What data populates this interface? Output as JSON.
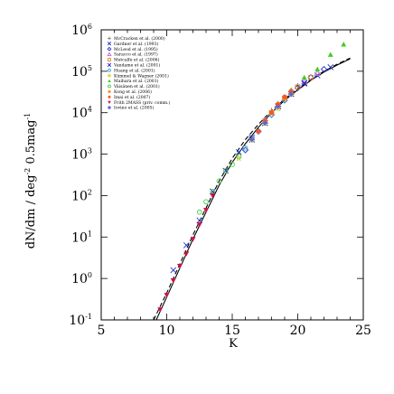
{
  "chart_data": {
    "type": "scatter",
    "title": "",
    "xlabel": "K",
    "ylabel_parts": {
      "a": "dN/dm / deg",
      "b": "-2",
      "c": " 0.5mag",
      "d": "-1"
    },
    "xlim": [
      5,
      25
    ],
    "ylim_log10": [
      -1,
      6
    ],
    "log_y": true,
    "grid": false,
    "legend_position": "upper-left",
    "x_ticks": [
      {
        "value": 5,
        "label": "5"
      },
      {
        "value": 10,
        "label": "10"
      },
      {
        "value": 15,
        "label": "15"
      },
      {
        "value": 20,
        "label": "20"
      },
      {
        "value": 25,
        "label": "25"
      }
    ],
    "y_ticks": [
      {
        "exp": 6,
        "base": "10",
        "sup": "6"
      },
      {
        "exp": 5,
        "base": "10",
        "sup": "5"
      },
      {
        "exp": 4,
        "base": "10",
        "sup": "4"
      },
      {
        "exp": 3,
        "base": "10",
        "sup": "3"
      },
      {
        "exp": 2,
        "base": "10",
        "sup": "2"
      },
      {
        "exp": 1,
        "base": "10",
        "sup": "1"
      },
      {
        "exp": 0,
        "base": "10",
        "sup": "0"
      },
      {
        "exp": -1,
        "base": "10",
        "sup": "-1"
      }
    ],
    "series": [
      {
        "name": "McCracken et al. (2000)",
        "marker": "plus",
        "color": "#7a7a7a",
        "x": [
          17.5,
          18.0,
          18.5,
          19.0,
          19.5,
          20.0
        ],
        "y_log10": [
          3.85,
          4.05,
          4.22,
          4.38,
          4.52,
          4.65
        ]
      },
      {
        "name": "Gardner et al. (1993)",
        "marker": "cross",
        "color": "#1a33cc",
        "x": [
          10.5,
          11.5,
          12.5,
          13.5,
          14.5,
          15.5,
          16.5,
          17.5,
          18.5,
          19.5,
          20.5,
          21.5,
          22.5
        ],
        "y_log10": [
          0.2,
          0.8,
          1.4,
          2.1,
          2.6,
          3.05,
          3.4,
          3.75,
          4.15,
          4.45,
          4.7,
          4.9,
          5.1
        ]
      },
      {
        "name": "McLeod et al. (1995)",
        "marker": "diamond-open",
        "color": "#2b2bcc",
        "x": [
          16.0,
          17.0,
          18.0,
          19.0,
          20.0,
          21.0,
          22.0
        ],
        "y_log10": [
          3.1,
          3.55,
          3.95,
          4.3,
          4.6,
          4.85,
          5.05
        ]
      },
      {
        "name": "Saracco et al. (1997)",
        "marker": "triangle-open",
        "color": "#cc66cc",
        "x": [
          17.5,
          18.5,
          19.5,
          20.5,
          21.5
        ],
        "y_log10": [
          3.8,
          4.2,
          4.5,
          4.75,
          4.95
        ]
      },
      {
        "name": "Metcalfe et al. (2006)",
        "marker": "square-open",
        "color": "#e08a2a",
        "x": [
          18.0,
          19.0,
          20.0,
          21.0
        ],
        "y_log10": [
          4.0,
          4.35,
          4.62,
          4.85
        ]
      },
      {
        "name": "Vandame et al. (2001)",
        "marker": "x-small",
        "color": "#1a1acc",
        "x": [
          16.5,
          17.5,
          18.5,
          19.5,
          20.5
        ],
        "y_log10": [
          3.35,
          3.75,
          4.15,
          4.45,
          4.72
        ]
      },
      {
        "name": "Huang et al. (2001)",
        "marker": "circle-open",
        "color": "#33aacc",
        "x": [
          16.0,
          17.0,
          18.0,
          19.0
        ],
        "y_log10": [
          3.15,
          3.55,
          3.95,
          4.3
        ]
      },
      {
        "name": "Kümmel & Wagner (2001)",
        "marker": "star-open",
        "color": "#c8c820",
        "x": [
          15.5,
          16.5,
          17.5,
          18.5,
          19.5
        ],
        "y_log10": [
          2.9,
          3.35,
          3.75,
          4.1,
          4.45
        ]
      },
      {
        "name": "Maihara et al. (2001)",
        "marker": "triangle-filled",
        "color": "#44cc22",
        "x": [
          19.5,
          20.5,
          21.5,
          22.5,
          23.5
        ],
        "y_log10": [
          4.55,
          4.85,
          5.05,
          5.4,
          5.65
        ]
      },
      {
        "name": "Väisänen et al. (2001)",
        "marker": "circle-open",
        "color": "#44cc44",
        "x": [
          12.5,
          13.0,
          13.5,
          14.0,
          14.5,
          15.0,
          15.5
        ],
        "y_log10": [
          1.6,
          1.85,
          2.1,
          2.35,
          2.6,
          2.75,
          2.95
        ]
      },
      {
        "name": "Kong et al. (2006)",
        "marker": "square-filled",
        "color": "#f09420",
        "x": [
          17.5,
          18.0,
          18.5,
          19.0
        ],
        "y_log10": [
          3.8,
          4.0,
          4.2,
          4.35
        ]
      },
      {
        "name": "Imai et al. (2007)",
        "marker": "circle-filled",
        "color": "#ff5522",
        "x": [
          17.0,
          17.5,
          18.0,
          18.5,
          19.0,
          19.5
        ],
        "y_log10": [
          3.55,
          3.8,
          4.0,
          4.2,
          4.38,
          4.52
        ]
      },
      {
        "name": "Frith 2MASS (priv. comm.)",
        "marker": "triangle-down-filled",
        "color": "#cc1144",
        "x": [
          9.5,
          10.0,
          10.5,
          11.0,
          11.5,
          12.0,
          12.5,
          13.0,
          13.5
        ],
        "y_log10": [
          -0.75,
          -0.4,
          -0.05,
          0.3,
          0.6,
          0.95,
          1.3,
          1.65,
          2.0
        ]
      },
      {
        "name": "Iovino et al. (2005)",
        "marker": "plus-bold",
        "color": "#5566dd",
        "x": [
          16.5,
          17.5,
          18.5,
          19.5
        ],
        "y_log10": [
          3.35,
          3.75,
          4.15,
          4.45
        ]
      }
    ],
    "model_curves": [
      {
        "style": "solid",
        "x": [
          9.2,
          10,
          11,
          12,
          13,
          14,
          15,
          16,
          17,
          18,
          19,
          20,
          21,
          22,
          23,
          24
        ],
        "y_log10": [
          -1.0,
          -0.45,
          0.25,
          0.95,
          1.6,
          2.25,
          2.8,
          3.25,
          3.65,
          4.0,
          4.3,
          4.55,
          4.78,
          4.98,
          5.15,
          5.3
        ]
      },
      {
        "style": "dashed",
        "x": [
          9.0,
          10,
          11,
          12,
          13,
          14,
          15,
          16,
          17,
          18,
          19,
          20,
          21,
          22,
          23,
          24
        ],
        "y_log10": [
          -1.0,
          -0.35,
          0.35,
          1.05,
          1.7,
          2.35,
          2.9,
          3.35,
          3.72,
          4.05,
          4.33,
          4.58,
          4.8,
          5.0,
          5.17,
          5.32
        ]
      }
    ]
  }
}
